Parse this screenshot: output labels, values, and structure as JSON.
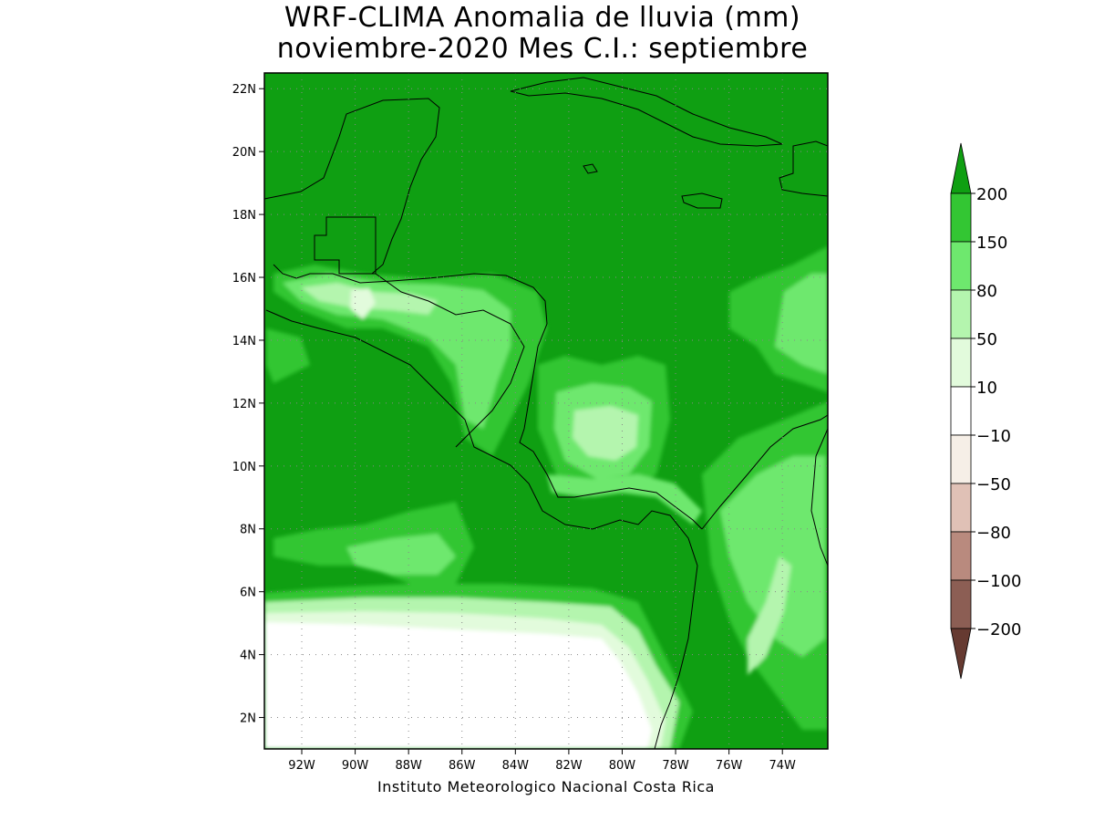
{
  "title": {
    "line1": "WRF-CLIMA Anomalia de lluvia (mm)",
    "line2": "noviembre-2020 Mes C.I.: septiembre"
  },
  "credit": "Instituto Meteorologico Nacional Costa Rica",
  "map": {
    "lon_range": [
      -93.4,
      -72.3
    ],
    "lat_range": [
      1.0,
      22.5
    ],
    "lon_ticks": [
      {
        "value": -92,
        "label": "92W"
      },
      {
        "value": -90,
        "label": "90W"
      },
      {
        "value": -88,
        "label": "88W"
      },
      {
        "value": -86,
        "label": "86W"
      },
      {
        "value": -84,
        "label": "84W"
      },
      {
        "value": -82,
        "label": "82W"
      },
      {
        "value": -80,
        "label": "80W"
      },
      {
        "value": -78,
        "label": "78W"
      },
      {
        "value": -76,
        "label": "76W"
      },
      {
        "value": -74,
        "label": "74W"
      }
    ],
    "lat_ticks": [
      {
        "value": 2,
        "label": "2N"
      },
      {
        "value": 4,
        "label": "4N"
      },
      {
        "value": 6,
        "label": "6N"
      },
      {
        "value": 8,
        "label": "8N"
      },
      {
        "value": 10,
        "label": "10N"
      },
      {
        "value": 12,
        "label": "12N"
      },
      {
        "value": 14,
        "label": "14N"
      },
      {
        "value": 16,
        "label": "16N"
      },
      {
        "value": 18,
        "label": "18N"
      },
      {
        "value": 20,
        "label": "20N"
      },
      {
        "value": 22,
        "label": "22N"
      }
    ],
    "grid": "dotted",
    "background_class_color": "#0f9f12"
  },
  "colorbar": {
    "levels": [
      "200",
      "150",
      "80",
      "50",
      "10",
      "-10",
      "-50",
      "-80",
      "-100",
      "-200"
    ],
    "colors": [
      "#0f9f12",
      "#33c633",
      "#6ee86e",
      "#b4f5ae",
      "#e2fbdc",
      "#ffffff",
      "#f6efe7",
      "#e0c1b6",
      "#b98a7e",
      "#8c5e54",
      "#663a31"
    ]
  }
}
